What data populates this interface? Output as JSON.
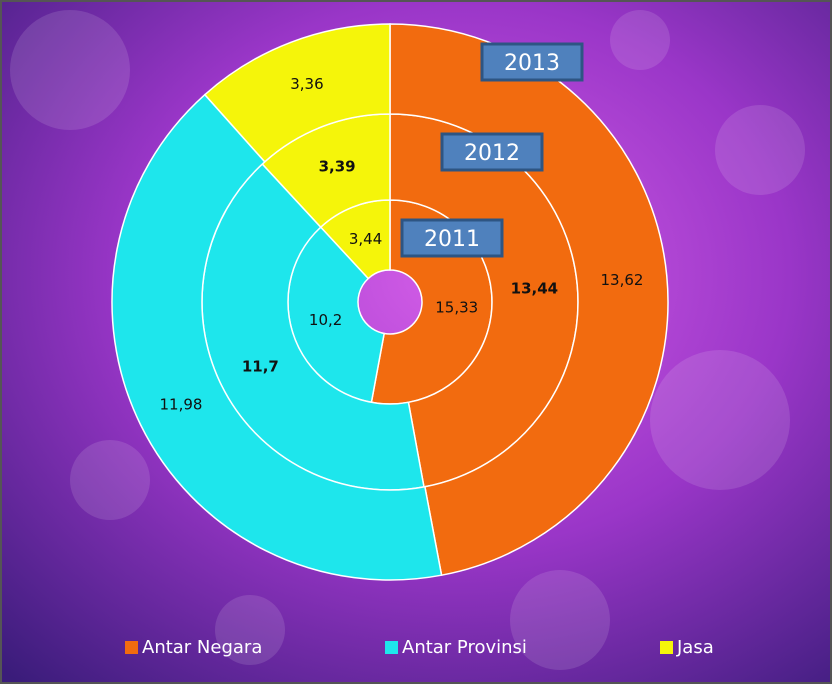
{
  "chart_data": {
    "type": "donut",
    "categories": [
      "Antar Negara",
      "Antar Provinsi",
      "Jasa"
    ],
    "colors": [
      "#f26b0f",
      "#1ee6ec",
      "#f5f50a"
    ],
    "series": [
      {
        "name": "2011",
        "values": [
          15.33,
          10.2,
          3.44
        ],
        "value_labels": [
          "15,33",
          "10,2",
          "3,44"
        ]
      },
      {
        "name": "2012",
        "values": [
          13.44,
          11.7,
          3.39
        ],
        "value_labels": [
          "13,44",
          "11,7",
          "3,39"
        ]
      },
      {
        "name": "2013",
        "values": [
          13.62,
          11.98,
          3.36
        ],
        "value_labels": [
          "13,62",
          "11,98",
          "3,36"
        ]
      }
    ],
    "legend": "bottom"
  }
}
